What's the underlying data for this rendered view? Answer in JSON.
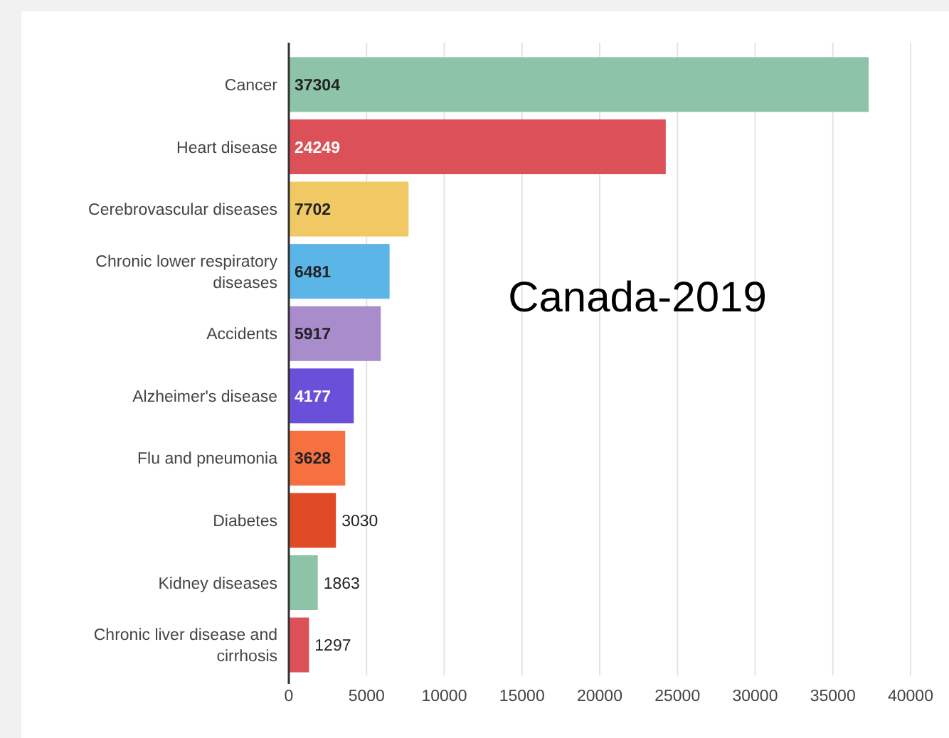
{
  "chart_data": {
    "type": "bar",
    "orientation": "horizontal",
    "title": "Canada-2019",
    "categories": [
      "Cancer",
      "Heart disease",
      "Cerebrovascular diseases",
      "Chronic lower respiratory diseases",
      "Accidents",
      "Alzheimer's disease",
      "Flu and pneumonia",
      "Diabetes",
      "Kidney diseases",
      "Chronic liver disease and cirrhosis"
    ],
    "values": [
      37304,
      24249,
      7702,
      6481,
      5917,
      4177,
      3628,
      3030,
      1863,
      1297
    ],
    "colors": [
      "#8dc3a7",
      "#dc5157",
      "#f0c964",
      "#5bb5e6",
      "#a98ccc",
      "#6a4fd8",
      "#f7703f",
      "#e04b25",
      "#8dc3a7",
      "#dc5157"
    ],
    "xlim": [
      0,
      40000
    ],
    "xticks": [
      0,
      5000,
      10000,
      15000,
      20000,
      25000,
      30000,
      35000,
      40000
    ],
    "grid": "x",
    "data_labels": true
  }
}
